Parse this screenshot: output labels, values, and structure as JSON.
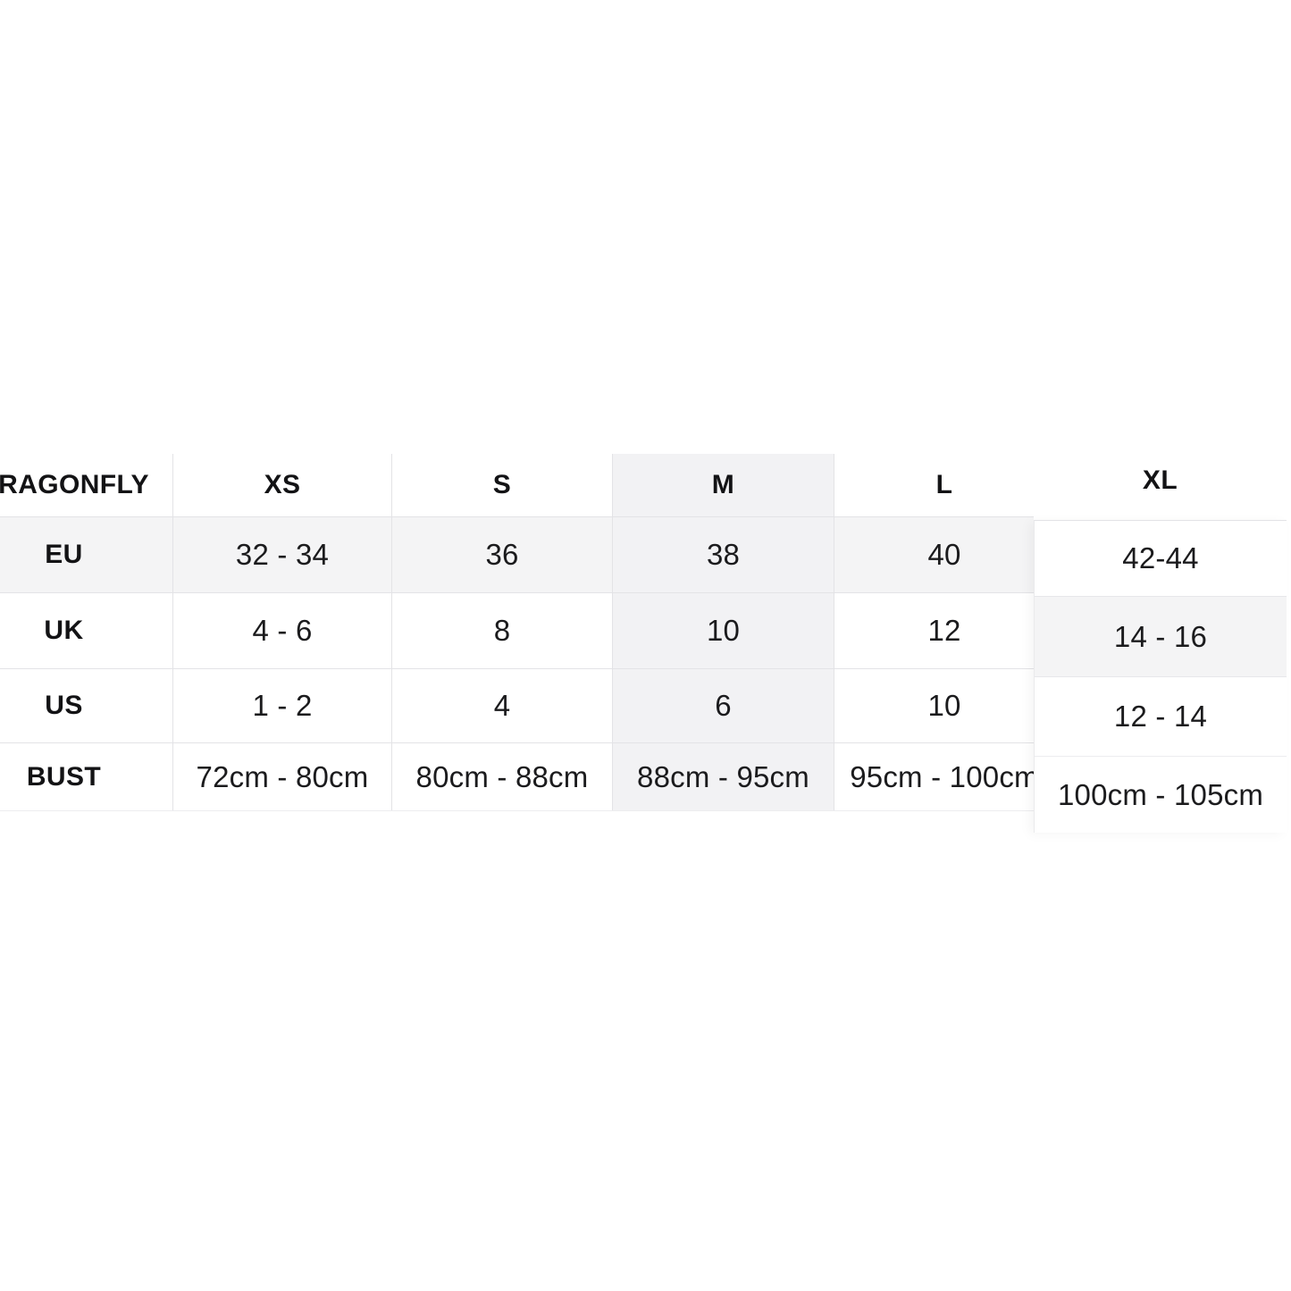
{
  "size_chart": {
    "brand": "DRAGONFLY",
    "columns": [
      "XS",
      "S",
      "M",
      "L",
      "XL"
    ],
    "highlighted_column": "M",
    "highlighted_row": "EU",
    "rows": [
      {
        "label": "EU",
        "values": [
          "32 - 34",
          "36",
          "38",
          "40",
          "42-44"
        ]
      },
      {
        "label": "UK",
        "values": [
          "4 - 6",
          "8",
          "10",
          "12",
          "14 - 16"
        ]
      },
      {
        "label": "US",
        "values": [
          "1 - 2",
          "4",
          "6",
          "10",
          "12 - 14"
        ]
      },
      {
        "label": "BUST",
        "values": [
          "72cm - 80cm",
          "80cm - 88cm",
          "88cm - 95cm",
          "95cm - 100cm",
          "100cm - 105cm"
        ]
      }
    ],
    "colors": {
      "background": "#ffffff",
      "stripe": "#f4f4f5",
      "border": "#e3e3e6",
      "text": "#131315"
    }
  }
}
